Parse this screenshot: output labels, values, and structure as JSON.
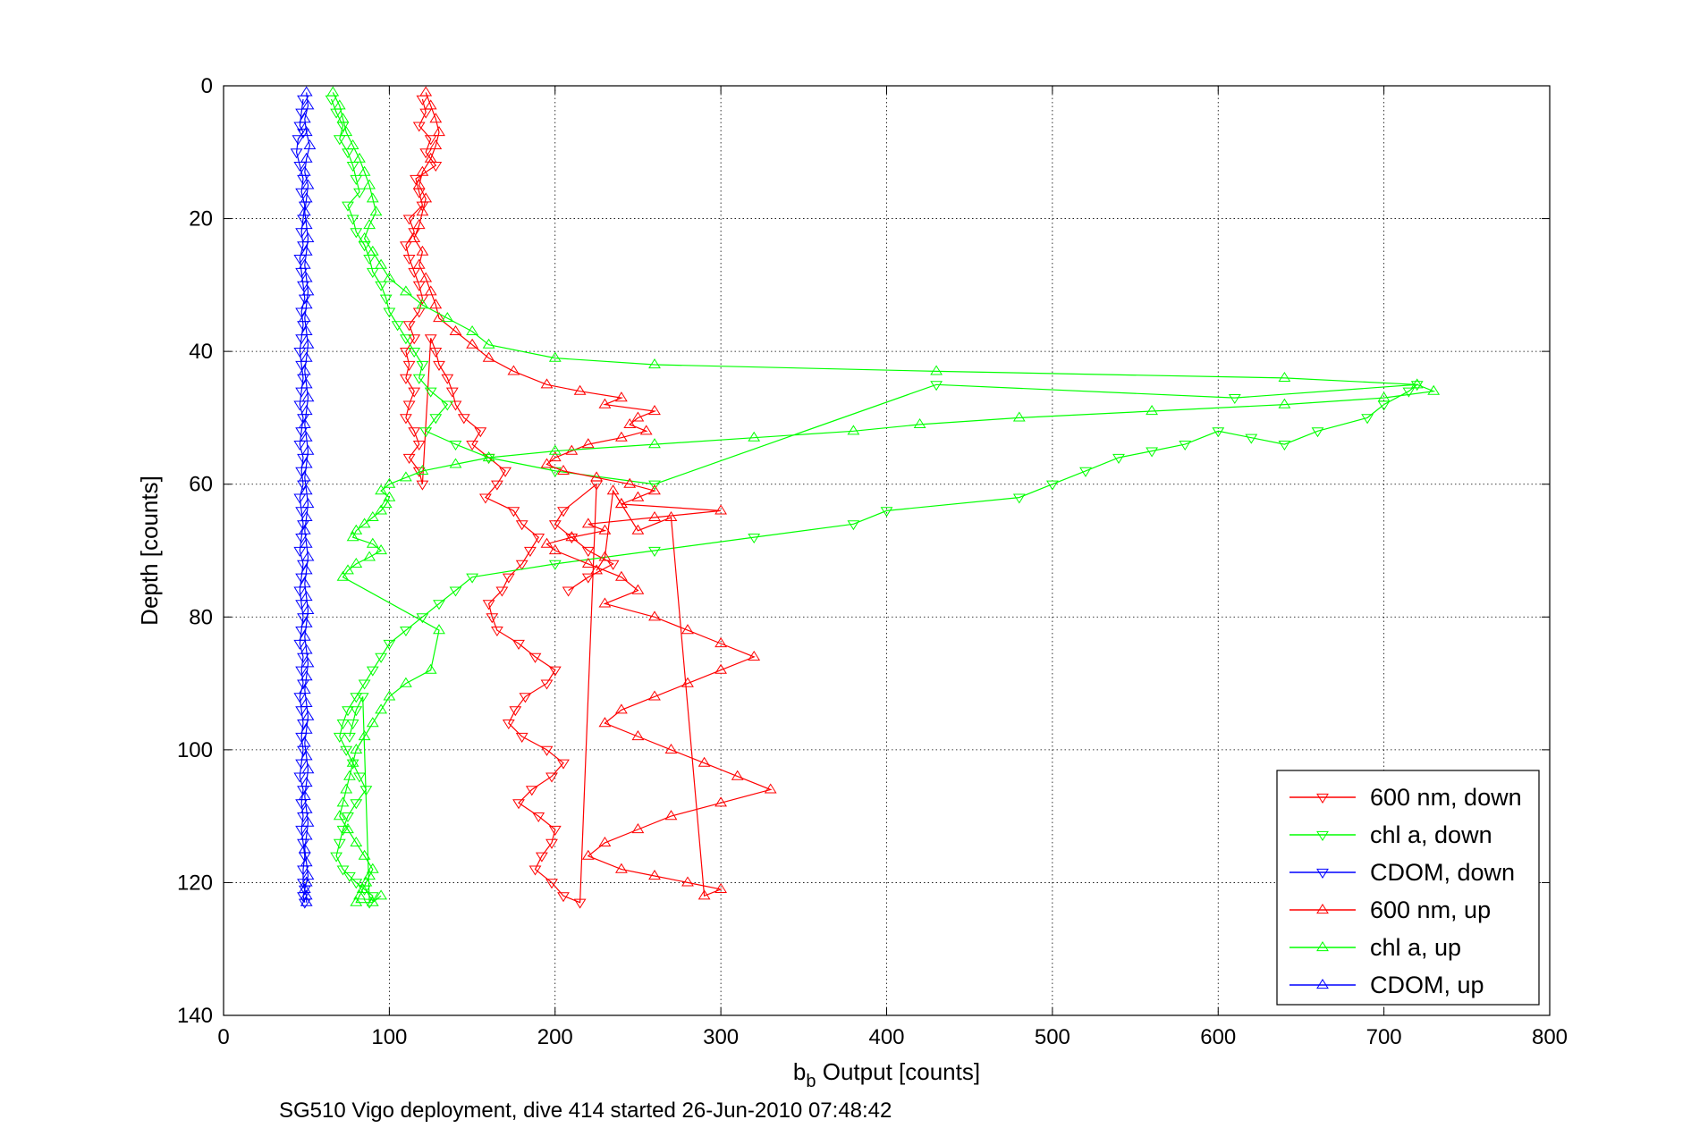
{
  "chart_data": {
    "type": "line",
    "xlabel_main": "b",
    "xlabel_sub": "b",
    "xlabel_rest": " Output [counts]",
    "ylabel": "Depth [counts]",
    "caption": "SG510 Vigo deployment, dive 414 started 26-Jun-2010 07:48:42",
    "xlim": [
      0,
      800
    ],
    "ylim": [
      0,
      140
    ],
    "y_reversed": true,
    "xticks": [
      0,
      100,
      200,
      300,
      400,
      500,
      600,
      700,
      800
    ],
    "yticks": [
      0,
      20,
      40,
      60,
      80,
      100,
      120,
      140
    ],
    "xtick_labels": [
      "0",
      "100",
      "200",
      "300",
      "400",
      "500",
      "600",
      "700",
      "800"
    ],
    "ytick_labels": [
      "0",
      "20",
      "40",
      "60",
      "80",
      "100",
      "120",
      "140"
    ],
    "grid": true,
    "legend_position": "bottom-right",
    "colors": {
      "red": "#ff0000",
      "green": "#00ff00",
      "blue": "#0000ff"
    },
    "series": [
      {
        "name": "600 nm, down",
        "color": "#ff0000",
        "marker": "triangle-down",
        "x": [
          120,
          122,
          118,
          125,
          122,
          128,
          116,
          118,
          120,
          112,
          115,
          110,
          112,
          115,
          118,
          120,
          118,
          112,
          115,
          110,
          112,
          110,
          115,
          112,
          110,
          115,
          118,
          112,
          118,
          120,
          125,
          128,
          130,
          135,
          138,
          140,
          145,
          155,
          150,
          160,
          170,
          165,
          158,
          175,
          180,
          190,
          185,
          180,
          172,
          168,
          160,
          162,
          165,
          178,
          188,
          200,
          195,
          182,
          176,
          172,
          180,
          195,
          205,
          198,
          186,
          178,
          190,
          200,
          198,
          192,
          188,
          198,
          205,
          215,
          225,
          205,
          200,
          210,
          220,
          235,
          220,
          208
        ],
        "y": [
          2,
          4,
          6,
          8,
          10,
          12,
          14,
          16,
          18,
          20,
          22,
          24,
          26,
          28,
          30,
          32,
          34,
          36,
          38,
          40,
          42,
          44,
          46,
          48,
          50,
          52,
          54,
          56,
          58,
          60,
          38,
          40,
          42,
          44,
          46,
          48,
          50,
          52,
          54,
          56,
          58,
          60,
          62,
          64,
          66,
          68,
          70,
          72,
          74,
          76,
          78,
          80,
          82,
          84,
          86,
          88,
          90,
          92,
          94,
          96,
          98,
          100,
          102,
          104,
          106,
          108,
          110,
          112,
          114,
          116,
          118,
          120,
          122,
          123,
          60,
          64,
          66,
          68,
          70,
          72,
          74,
          76
        ]
      },
      {
        "name": "chl a, down",
        "color": "#00ff00",
        "marker": "triangle-down",
        "x": [
          65,
          68,
          72,
          70,
          75,
          78,
          80,
          82,
          75,
          78,
          80,
          85,
          88,
          90,
          95,
          98,
          100,
          105,
          110,
          115,
          120,
          118,
          125,
          135,
          128,
          122,
          140,
          160,
          200,
          260,
          430,
          610,
          720,
          715,
          700,
          690,
          660,
          640,
          620,
          600,
          580,
          560,
          540,
          520,
          500,
          480,
          400,
          380,
          320,
          260,
          200,
          150,
          140,
          130,
          120,
          110,
          100,
          95,
          90,
          85,
          80,
          75,
          72,
          70,
          74,
          78,
          82,
          86,
          80,
          75,
          72,
          70,
          68,
          72,
          76,
          80,
          85,
          90,
          88,
          84,
          80,
          78,
          76
        ],
        "y": [
          2,
          4,
          6,
          8,
          10,
          12,
          14,
          16,
          18,
          20,
          22,
          24,
          26,
          28,
          30,
          32,
          34,
          36,
          38,
          40,
          42,
          44,
          46,
          48,
          50,
          52,
          54,
          56,
          58,
          60,
          45,
          47,
          45,
          46,
          48,
          50,
          52,
          54,
          53,
          52,
          54,
          55,
          56,
          58,
          60,
          62,
          64,
          66,
          68,
          70,
          72,
          74,
          76,
          78,
          80,
          82,
          84,
          86,
          88,
          90,
          92,
          94,
          96,
          98,
          100,
          102,
          104,
          106,
          108,
          110,
          112,
          114,
          116,
          118,
          119,
          120,
          121,
          122,
          123,
          92,
          94,
          96,
          98
        ]
      },
      {
        "name": "CDOM, down",
        "color": "#0000ff",
        "marker": "triangle-down",
        "x": [
          48,
          47,
          46,
          48,
          45,
          44,
          46,
          48,
          47,
          49,
          48,
          47,
          48,
          46,
          47,
          48,
          49,
          47,
          48,
          47,
          46,
          47,
          48,
          47,
          46,
          48,
          47,
          46,
          48,
          47,
          48,
          46,
          47,
          48,
          47,
          46,
          48,
          47,
          46,
          47,
          48,
          47,
          46,
          48,
          47,
          48,
          46,
          47,
          48,
          47,
          48,
          47,
          46,
          48,
          47,
          48,
          47,
          48,
          49,
          48,
          48,
          49,
          48,
          49
        ],
        "y": [
          2,
          4,
          6,
          7,
          8,
          10,
          12,
          14,
          16,
          18,
          20,
          22,
          24,
          26,
          28,
          30,
          32,
          34,
          36,
          38,
          40,
          42,
          44,
          46,
          48,
          50,
          52,
          54,
          56,
          58,
          60,
          62,
          64,
          66,
          68,
          70,
          72,
          74,
          76,
          78,
          80,
          82,
          84,
          86,
          88,
          90,
          92,
          94,
          96,
          98,
          100,
          102,
          104,
          106,
          108,
          110,
          112,
          114,
          116,
          118,
          120,
          121,
          122,
          123
        ]
      },
      {
        "name": "600 nm, up",
        "color": "#ff0000",
        "marker": "triangle-up",
        "x": [
          122,
          125,
          128,
          130,
          128,
          125,
          120,
          118,
          122,
          120,
          118,
          115,
          120,
          118,
          122,
          125,
          128,
          130,
          140,
          150,
          160,
          175,
          195,
          215,
          240,
          230,
          260,
          250,
          245,
          255,
          240,
          220,
          210,
          200,
          195,
          205,
          225,
          245,
          260,
          250,
          240,
          300,
          260,
          220,
          230,
          210,
          195,
          200,
          220,
          240,
          250,
          230,
          260,
          280,
          300,
          320,
          300,
          280,
          260,
          240,
          230,
          250,
          270,
          290,
          310,
          330,
          300,
          270,
          250,
          230,
          220,
          240,
          260,
          280,
          300,
          290,
          270,
          250,
          240,
          235,
          230,
          225
        ],
        "y": [
          1,
          3,
          5,
          7,
          9,
          11,
          13,
          15,
          17,
          19,
          21,
          23,
          25,
          27,
          29,
          31,
          33,
          35,
          37,
          39,
          41,
          43,
          45,
          46,
          47,
          48,
          49,
          50,
          51,
          52,
          53,
          54,
          55,
          56,
          57,
          58,
          59,
          60,
          61,
          62,
          63,
          64,
          65,
          66,
          67,
          68,
          69,
          70,
          72,
          74,
          76,
          78,
          80,
          82,
          84,
          86,
          88,
          90,
          92,
          94,
          96,
          98,
          100,
          102,
          104,
          106,
          108,
          110,
          112,
          114,
          116,
          118,
          119,
          120,
          121,
          122,
          65,
          67,
          63,
          61,
          71,
          73
        ]
      },
      {
        "name": "chl a, up",
        "color": "#00ff00",
        "marker": "triangle-up",
        "x": [
          66,
          70,
          72,
          74,
          78,
          82,
          85,
          88,
          90,
          92,
          88,
          85,
          90,
          95,
          100,
          110,
          120,
          135,
          150,
          160,
          200,
          260,
          430,
          640,
          720,
          730,
          700,
          640,
          560,
          480,
          420,
          380,
          320,
          260,
          200,
          160,
          140,
          120,
          110,
          100,
          95,
          100,
          98,
          95,
          90,
          85,
          80,
          78,
          90,
          95,
          88,
          80,
          75,
          72,
          130,
          125,
          110,
          100,
          95,
          90,
          85,
          80,
          78,
          76,
          74,
          72,
          70,
          75,
          80,
          85,
          90,
          88,
          86,
          84,
          82,
          80,
          90,
          95
        ],
        "y": [
          1,
          3,
          5,
          7,
          9,
          11,
          13,
          15,
          17,
          19,
          21,
          23,
          25,
          27,
          29,
          31,
          33,
          35,
          37,
          39,
          41,
          42,
          43,
          44,
          45,
          46,
          47,
          48,
          49,
          50,
          51,
          52,
          53,
          54,
          55,
          56,
          57,
          58,
          59,
          60,
          61,
          62,
          63,
          64,
          65,
          66,
          67,
          68,
          69,
          70,
          71,
          72,
          73,
          74,
          82,
          88,
          90,
          92,
          94,
          96,
          98,
          100,
          102,
          104,
          106,
          108,
          110,
          112,
          114,
          116,
          118,
          119,
          120,
          121,
          122,
          123,
          123,
          122
        ]
      },
      {
        "name": "CDOM, up",
        "color": "#0000ff",
        "marker": "triangle-up",
        "x": [
          50,
          51,
          49,
          50,
          52,
          50,
          49,
          51,
          50,
          49,
          50,
          51,
          50,
          49,
          50,
          51,
          50,
          49,
          50,
          51,
          50,
          49,
          50,
          51,
          50,
          49,
          50,
          51,
          50,
          49,
          50,
          51,
          50,
          49,
          50,
          51,
          50,
          49,
          50,
          51,
          50,
          49,
          50,
          51,
          50,
          49,
          50,
          51,
          50,
          49,
          50,
          51,
          50,
          49,
          50,
          51,
          50,
          49,
          50,
          51,
          50,
          49,
          50,
          50
        ],
        "y": [
          1,
          3,
          5,
          7,
          9,
          11,
          13,
          15,
          17,
          19,
          21,
          23,
          25,
          27,
          29,
          31,
          33,
          35,
          37,
          39,
          41,
          43,
          45,
          47,
          49,
          51,
          53,
          55,
          57,
          59,
          61,
          63,
          65,
          67,
          69,
          71,
          73,
          75,
          77,
          79,
          81,
          83,
          85,
          87,
          89,
          91,
          93,
          95,
          97,
          99,
          101,
          103,
          105,
          107,
          109,
          111,
          113,
          115,
          117,
          119,
          120,
          121,
          122,
          123
        ]
      }
    ]
  }
}
